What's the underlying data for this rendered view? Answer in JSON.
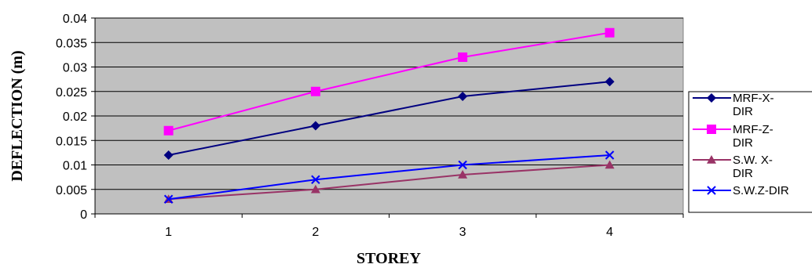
{
  "chart_data": {
    "type": "line",
    "title": "",
    "xlabel": "STOREY",
    "ylabel": "DEFLECTION (m)",
    "categories": [
      "1",
      "2",
      "3",
      "4"
    ],
    "ylim": [
      0,
      0.04
    ],
    "yticks": [
      "0",
      "0.005",
      "0.01",
      "0.015",
      "0.02",
      "0.025",
      "0.03",
      "0.035",
      "0.04"
    ],
    "grid": "horizontal",
    "legend_position": "right",
    "plot_background": "#c0c0c0",
    "series": [
      {
        "name": "MRF-X-DIR",
        "legend_lines": [
          "MRF-X-",
          "DIR"
        ],
        "color": "#000080",
        "marker": "diamond",
        "values": [
          0.012,
          0.018,
          0.024,
          0.027
        ]
      },
      {
        "name": "MRF-Z-DIR",
        "legend_lines": [
          "MRF-Z-",
          "DIR"
        ],
        "color": "#ff00ff",
        "marker": "square",
        "values": [
          0.017,
          0.025,
          0.032,
          0.037
        ]
      },
      {
        "name": "S.W. X-DIR",
        "legend_lines": [
          "S.W. X-",
          "DIR"
        ],
        "color": "#993366",
        "marker": "triangle",
        "values": [
          0.003,
          0.005,
          0.008,
          0.01
        ]
      },
      {
        "name": "S.W.Z-DIR",
        "legend_lines": [
          "S.W.Z-DIR"
        ],
        "color": "#0000ff",
        "marker": "x",
        "values": [
          0.003,
          0.007,
          0.01,
          0.012
        ]
      }
    ]
  }
}
